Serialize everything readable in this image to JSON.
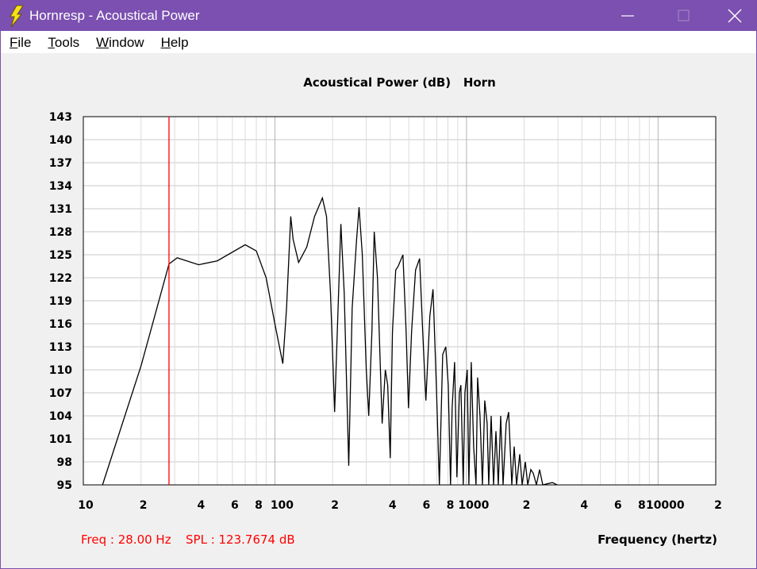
{
  "window": {
    "title": "Hornresp - Acoustical Power",
    "menu": [
      "File",
      "Tools",
      "Window",
      "Help"
    ]
  },
  "chart_data": {
    "type": "line",
    "title": "Acoustical Power (dB)   Horn",
    "x_label": "Frequency (hertz)",
    "log_x": true,
    "grid": true,
    "color": "#000000",
    "x": [
      12.6,
      20,
      28,
      30.9,
      40,
      50,
      70,
      80,
      90,
      100,
      110,
      115,
      121,
      124.5,
      133,
      146.6,
      161,
      177,
      186,
      195,
      205,
      215,
      221,
      230,
      243,
      253,
      267,
      275,
      286,
      300,
      309,
      321,
      330,
      343,
      363,
      377,
      388,
      400,
      411,
      427,
      440,
      466,
      484,
      498,
      517,
      542,
      569,
      591,
      614,
      644,
      669,
      696,
      722,
      751,
      780,
      803,
      826,
      842,
      867,
      891,
      918,
      935,
      962,
      981,
      1009,
      1029,
      1059,
      1090,
      1122,
      1143,
      1176,
      1211,
      1245,
      1282,
      1306,
      1345,
      1384,
      1425,
      1466,
      1508,
      1552,
      1611,
      1660,
      1725,
      1774,
      1825,
      1897,
      1951,
      2028,
      2088,
      2168,
      2232,
      2317,
      2408,
      2500,
      2806,
      2973
    ],
    "values": [
      95,
      110.5,
      123.8,
      124.6,
      123.7,
      124.2,
      126.3,
      125.5,
      122,
      116,
      110.8,
      118,
      130,
      127,
      124,
      126,
      130,
      132.4,
      130,
      120,
      104.5,
      120,
      129,
      120,
      97.5,
      118,
      127,
      131.2,
      125,
      110,
      104,
      115,
      128,
      122,
      103,
      110,
      108,
      98.5,
      115,
      123,
      123.5,
      125,
      115,
      105,
      115,
      123,
      124.5,
      115,
      106,
      117,
      120.5,
      108,
      95,
      112,
      113,
      108,
      95,
      105,
      111,
      96,
      107,
      108,
      95,
      107,
      110,
      95,
      111,
      100,
      95,
      109,
      104,
      95,
      106,
      103,
      95,
      104,
      95,
      102,
      95,
      104,
      95,
      103,
      104.5,
      95,
      100,
      95,
      99,
      95,
      98,
      95,
      97,
      96.5,
      95,
      97,
      95,
      95.3,
      95
    ],
    "xlim": [
      10,
      20000
    ],
    "ylim": [
      95,
      143
    ],
    "yticks": [
      95,
      98,
      101,
      104,
      107,
      110,
      113,
      116,
      119,
      122,
      125,
      128,
      131,
      134,
      137,
      140,
      143
    ],
    "xticks": [
      10,
      {
        "value": 20,
        "label": "2"
      },
      {
        "value": 40,
        "label": "4"
      },
      {
        "value": 60,
        "label": "6"
      },
      {
        "value": 80,
        "label": "8"
      },
      100,
      {
        "value": 200,
        "label": "2"
      },
      {
        "value": 400,
        "label": "4"
      },
      {
        "value": 600,
        "label": "6"
      },
      {
        "value": 800,
        "label": "8"
      },
      1000,
      {
        "value": 2000,
        "label": "2"
      },
      {
        "value": 4000,
        "label": "4"
      },
      {
        "value": 6000,
        "label": "6"
      },
      {
        "value": 8000,
        "label": "8"
      },
      10000,
      {
        "value": 20000,
        "label": "2"
      }
    ],
    "xminor": [
      30,
      50,
      70,
      90,
      300,
      500,
      700,
      900,
      3000,
      5000,
      7000,
      9000
    ],
    "cursor": {
      "freq": 28,
      "color": "#ff0000",
      "freq_readout": "Freq : 28.00 Hz",
      "spl_readout": "SPL : 123.7674 dB"
    }
  }
}
